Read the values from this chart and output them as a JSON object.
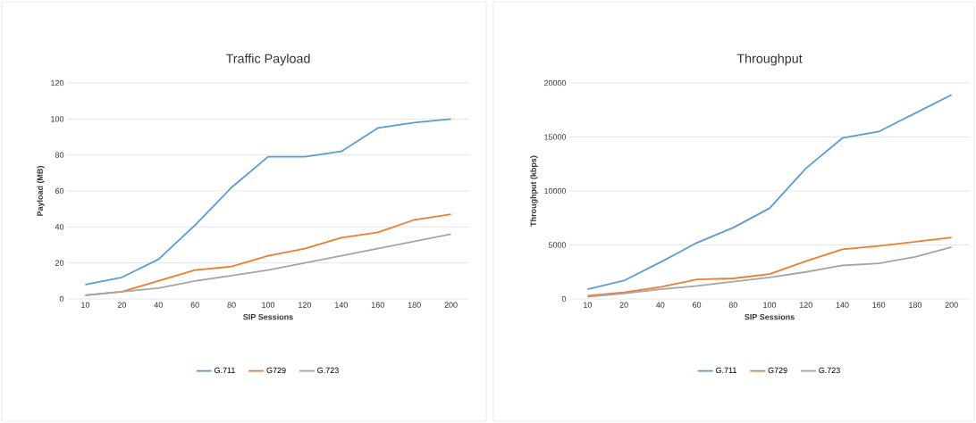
{
  "chart_data": [
    {
      "type": "line",
      "title": "Traffic Payload",
      "xlabel": "SIP Sessions",
      "ylabel": "Payload (MB)",
      "categories": [
        "10",
        "20",
        "40",
        "60",
        "80",
        "100",
        "120",
        "140",
        "160",
        "180",
        "200"
      ],
      "series": [
        {
          "name": "G.711",
          "color": "#5b9bd5",
          "values": [
            8,
            12,
            22,
            41,
            62,
            79,
            79,
            82,
            95,
            98,
            100
          ]
        },
        {
          "name": "G729",
          "color": "#ed7d31",
          "values": [
            2,
            4,
            10,
            16,
            18,
            24,
            28,
            34,
            37,
            44,
            47
          ]
        },
        {
          "name": "G.723",
          "color": "#a5a5a5",
          "values": [
            2,
            4,
            6,
            10,
            13,
            16,
            20,
            24,
            28,
            32,
            36
          ]
        }
      ],
      "ylim": [
        0,
        120
      ],
      "yticks": [
        0,
        20,
        40,
        60,
        80,
        100,
        120
      ],
      "grid": "y",
      "legend": "bottom"
    },
    {
      "type": "line",
      "title": "Throughput",
      "xlabel": "SIP Sessions",
      "ylabel": "Throughput (kbps)",
      "categories": [
        "10",
        "20",
        "40",
        "60",
        "80",
        "100",
        "120",
        "140",
        "160",
        "180",
        "200"
      ],
      "series": [
        {
          "name": "G.711",
          "color": "#5b9bd5",
          "values": [
            900,
            1700,
            3400,
            5200,
            6600,
            8400,
            12100,
            14900,
            15500,
            17200,
            18900
          ]
        },
        {
          "name": "G729",
          "color": "#ed7d31",
          "values": [
            300,
            600,
            1100,
            1800,
            1900,
            2300,
            3500,
            4600,
            4900,
            5300,
            5700
          ]
        },
        {
          "name": "G.723",
          "color": "#a5a5a5",
          "values": [
            200,
            500,
            900,
            1200,
            1600,
            2000,
            2500,
            3100,
            3300,
            3900,
            4800
          ]
        }
      ],
      "ylim": [
        0,
        20000
      ],
      "yticks": [
        0,
        5000,
        10000,
        15000,
        20000
      ],
      "grid": "y",
      "legend": "bottom"
    }
  ]
}
